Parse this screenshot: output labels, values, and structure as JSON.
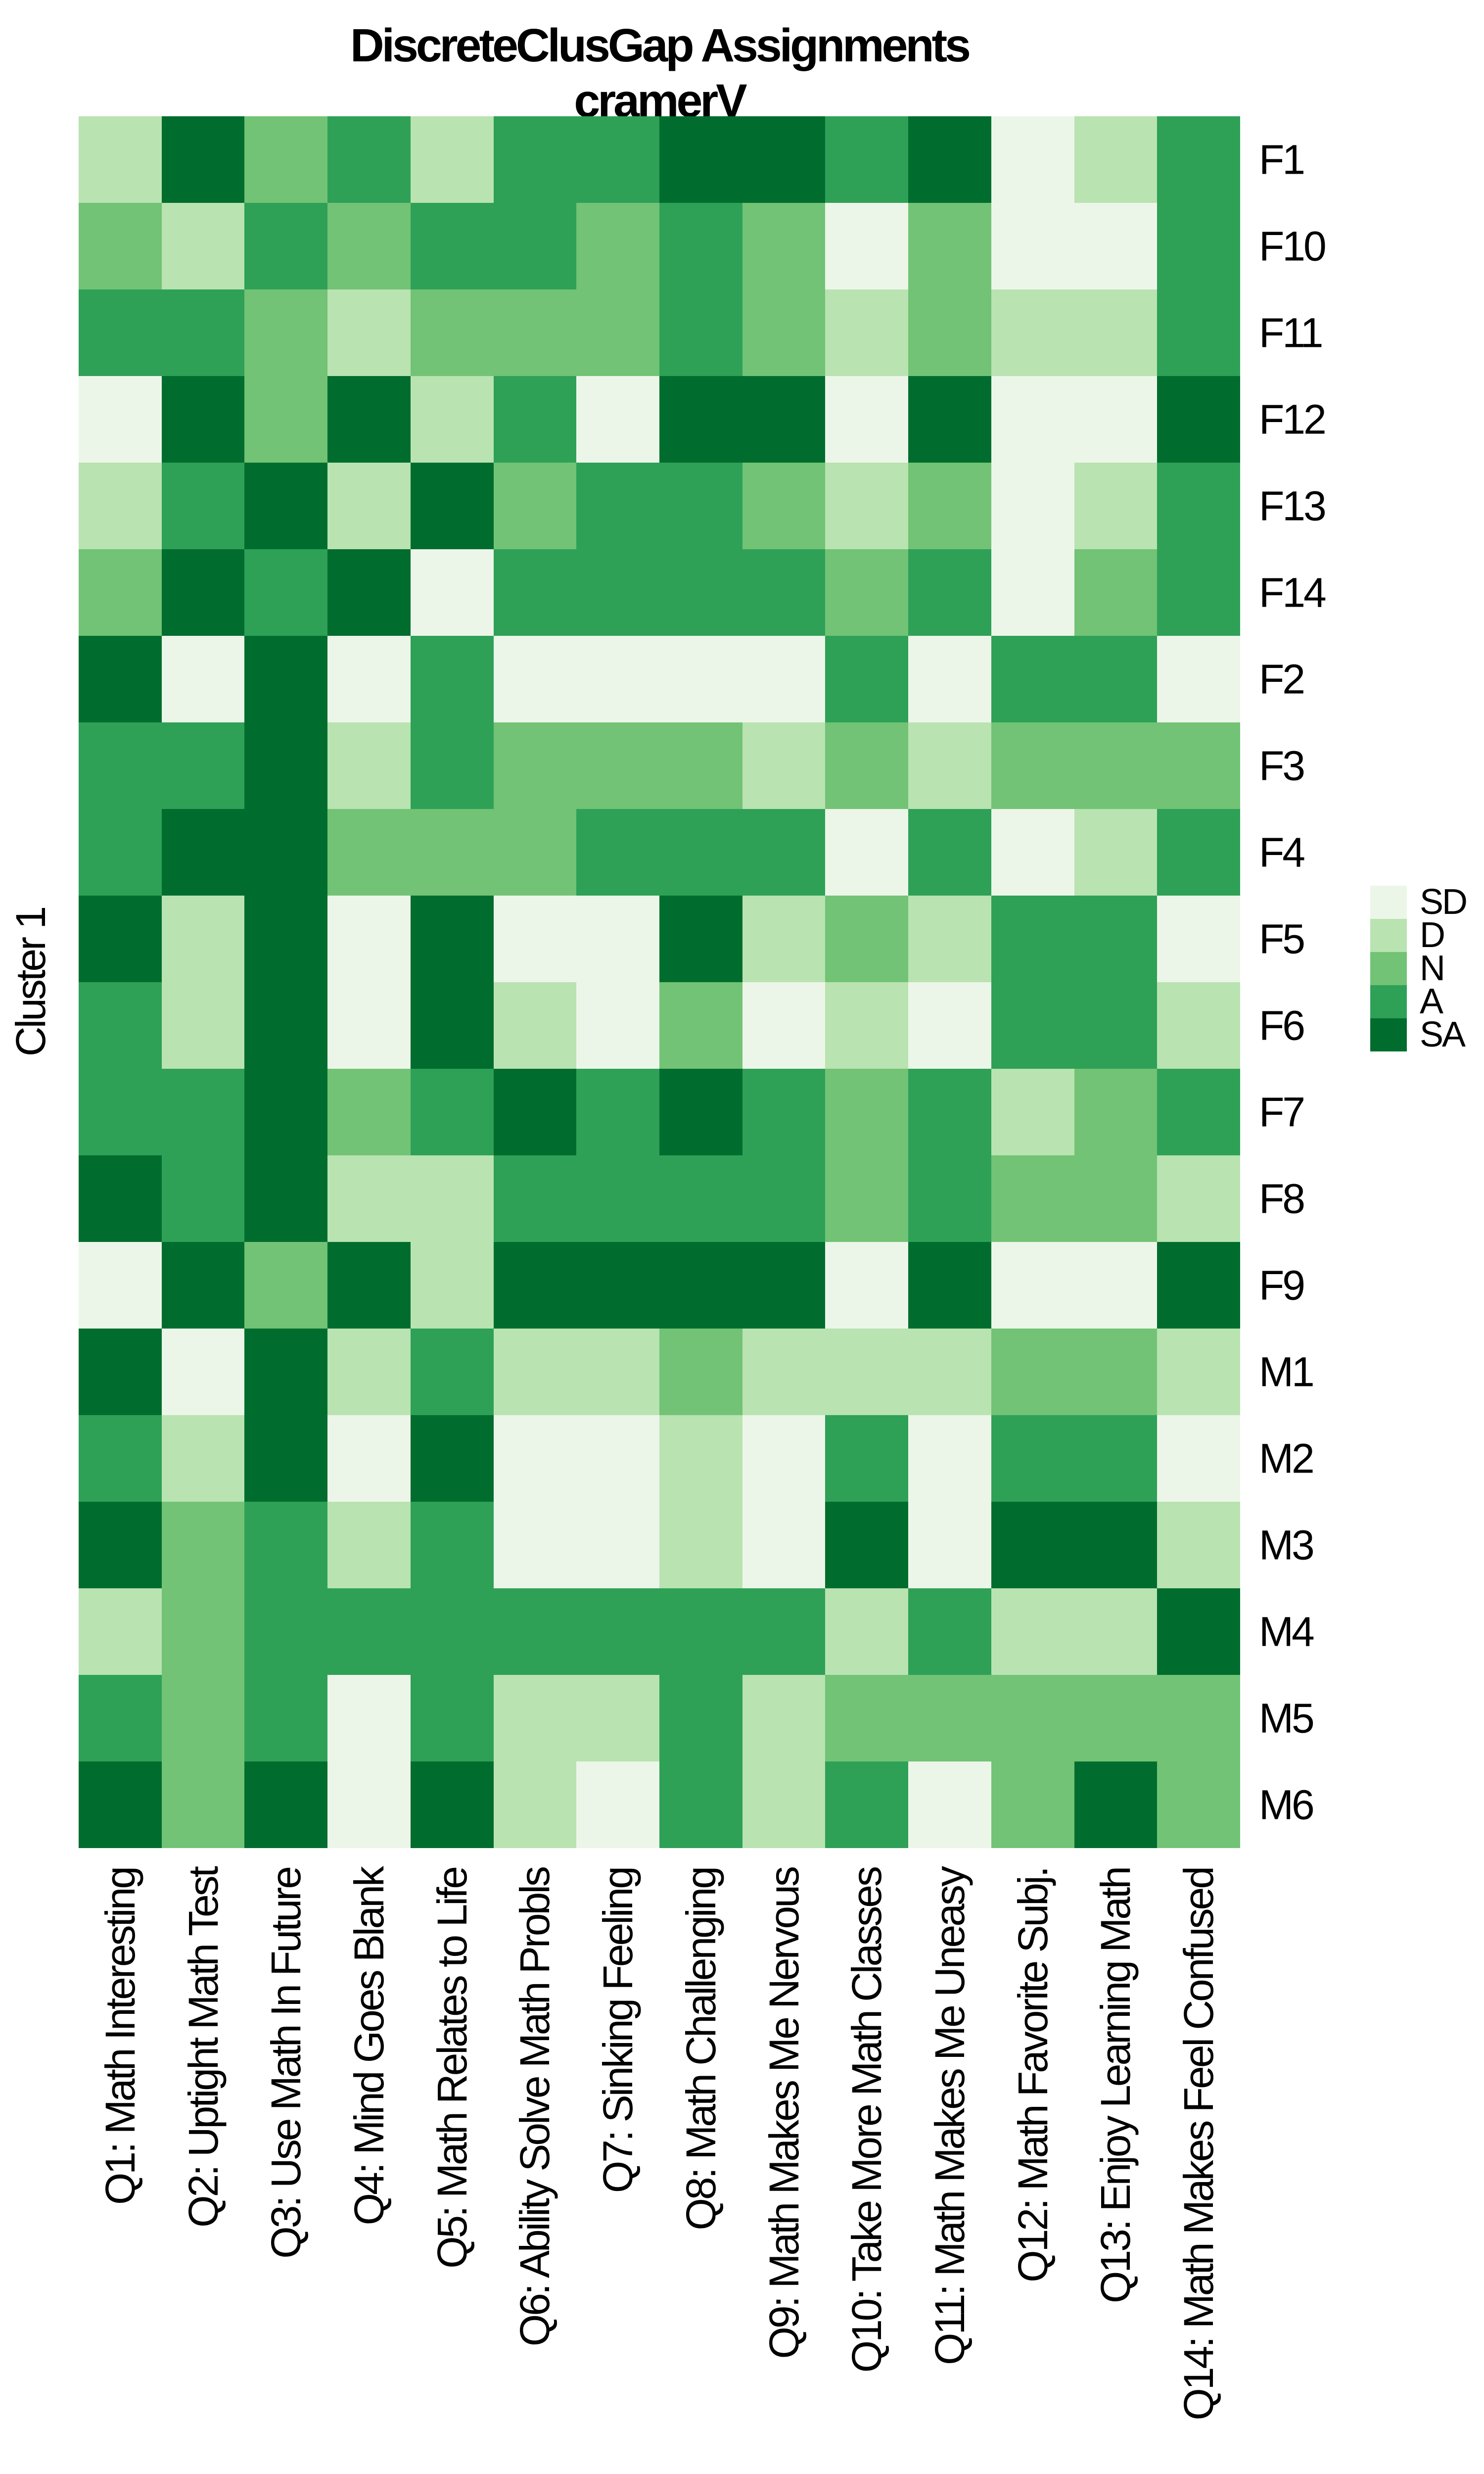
{
  "chart_data": {
    "type": "heatmap",
    "title": "DiscreteClusGap Assignments",
    "subtitle": "cramerV",
    "y_axis_label": "Cluster 1",
    "legend_position": "right",
    "grid": false,
    "value_scale": [
      "SD",
      "D",
      "N",
      "A",
      "SA"
    ],
    "colors": {
      "SD": "#ECF6E8",
      "D": "#B9E3B1",
      "N": "#72C375",
      "A": "#2EA157",
      "SA": "#006D2E"
    },
    "x_labels": [
      "Q1: Math Interesting",
      "Q2: Uptight Math Test",
      "Q3: Use Math In Future",
      "Q4: Mind Goes Blank",
      "Q5: Math Relates to Life",
      "Q6: Ability Solve Math Probls",
      "Q7: Sinking Feeling",
      "Q8: Math Challenging",
      "Q9: Math Makes Me Nervous",
      "Q10: Take More Math Classes",
      "Q11: Math Makes Me Uneasy",
      "Q12: Math Favorite Subj.",
      "Q13: Enjoy Learning Math",
      "Q14: Math Makes Feel Confused"
    ],
    "y_labels": [
      "F1",
      "F10",
      "F11",
      "F12",
      "F13",
      "F14",
      "F2",
      "F3",
      "F4",
      "F5",
      "F6",
      "F7",
      "F8",
      "F9",
      "M1",
      "M2",
      "M3",
      "M4",
      "M5",
      "M6"
    ],
    "values": [
      [
        "D",
        "SA",
        "N",
        "A",
        "D",
        "A",
        "A",
        "SA",
        "SA",
        "A",
        "SA",
        "SD",
        "D",
        "A"
      ],
      [
        "N",
        "D",
        "A",
        "N",
        "A",
        "A",
        "N",
        "A",
        "N",
        "SD",
        "N",
        "SD",
        "SD",
        "A"
      ],
      [
        "A",
        "A",
        "N",
        "D",
        "N",
        "N",
        "N",
        "A",
        "N",
        "D",
        "N",
        "D",
        "D",
        "A"
      ],
      [
        "SD",
        "SA",
        "N",
        "SA",
        "D",
        "A",
        "SD",
        "SA",
        "SA",
        "SD",
        "SA",
        "SD",
        "SD",
        "SA"
      ],
      [
        "D",
        "A",
        "SA",
        "D",
        "SA",
        "N",
        "A",
        "A",
        "N",
        "D",
        "N",
        "SD",
        "D",
        "A"
      ],
      [
        "N",
        "SA",
        "A",
        "SA",
        "SD",
        "A",
        "A",
        "A",
        "A",
        "N",
        "A",
        "SD",
        "N",
        "A"
      ],
      [
        "SA",
        "SD",
        "SA",
        "SD",
        "A",
        "SD",
        "SD",
        "SD",
        "SD",
        "A",
        "SD",
        "A",
        "A",
        "SD"
      ],
      [
        "A",
        "A",
        "SA",
        "D",
        "A",
        "N",
        "N",
        "N",
        "D",
        "N",
        "D",
        "N",
        "N",
        "N"
      ],
      [
        "A",
        "SA",
        "SA",
        "N",
        "N",
        "N",
        "A",
        "A",
        "A",
        "SD",
        "A",
        "SD",
        "D",
        "A"
      ],
      [
        "SA",
        "D",
        "SA",
        "SD",
        "SA",
        "SD",
        "SD",
        "SA",
        "D",
        "N",
        "D",
        "A",
        "A",
        "SD"
      ],
      [
        "A",
        "D",
        "SA",
        "SD",
        "SA",
        "D",
        "SD",
        "N",
        "SD",
        "D",
        "SD",
        "A",
        "A",
        "D"
      ],
      [
        "A",
        "A",
        "SA",
        "N",
        "A",
        "SA",
        "A",
        "SA",
        "A",
        "N",
        "A",
        "D",
        "N",
        "A"
      ],
      [
        "SA",
        "A",
        "SA",
        "D",
        "D",
        "A",
        "A",
        "A",
        "A",
        "N",
        "A",
        "N",
        "N",
        "D"
      ],
      [
        "SD",
        "SA",
        "N",
        "SA",
        "D",
        "SA",
        "SA",
        "SA",
        "SA",
        "SD",
        "SA",
        "SD",
        "SD",
        "SA"
      ],
      [
        "SA",
        "SD",
        "SA",
        "D",
        "A",
        "D",
        "D",
        "N",
        "D",
        "D",
        "D",
        "N",
        "N",
        "D"
      ],
      [
        "A",
        "D",
        "SA",
        "SD",
        "SA",
        "SD",
        "SD",
        "D",
        "SD",
        "A",
        "SD",
        "A",
        "A",
        "SD"
      ],
      [
        "SA",
        "N",
        "A",
        "D",
        "A",
        "SD",
        "SD",
        "D",
        "SD",
        "SA",
        "SD",
        "SA",
        "SA",
        "D"
      ],
      [
        "D",
        "N",
        "A",
        "A",
        "A",
        "A",
        "A",
        "A",
        "A",
        "D",
        "A",
        "D",
        "D",
        "SA"
      ],
      [
        "A",
        "N",
        "A",
        "SD",
        "A",
        "D",
        "D",
        "A",
        "D",
        "N",
        "N",
        "N",
        "N",
        "N"
      ],
      [
        "SA",
        "N",
        "SA",
        "SD",
        "SA",
        "D",
        "SD",
        "A",
        "D",
        "A",
        "SD",
        "N",
        "SA",
        "N"
      ]
    ],
    "legend_entries": [
      "SD",
      "D",
      "N",
      "A",
      "SA"
    ]
  }
}
